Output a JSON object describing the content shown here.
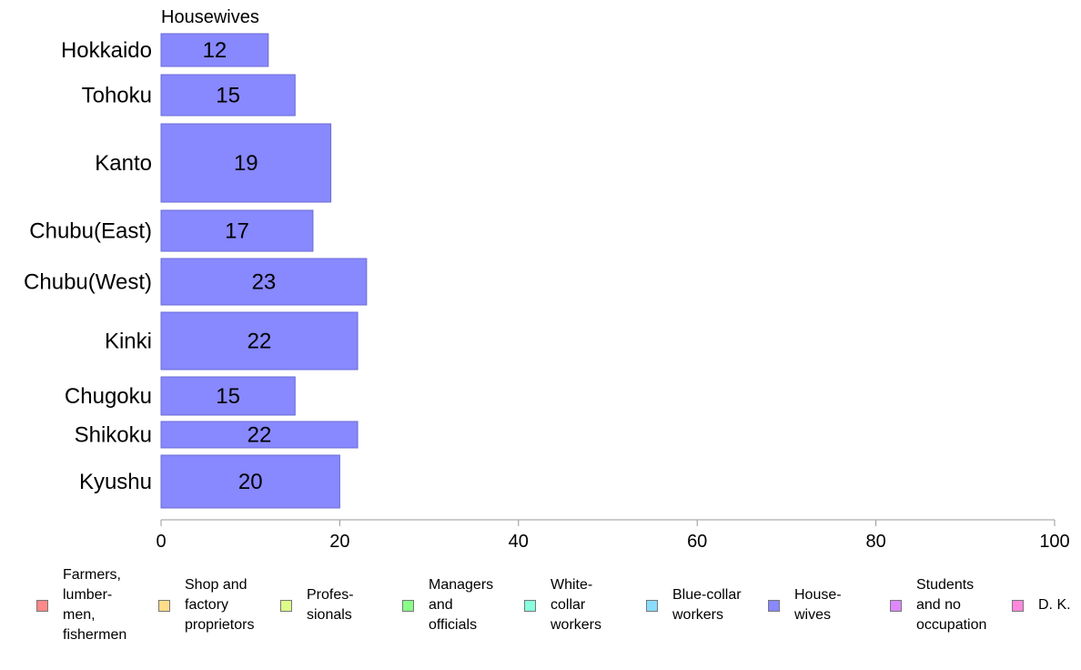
{
  "chart_data": {
    "type": "bar",
    "orientation": "horizontal",
    "title": "Housewives",
    "categories": [
      "Hokkaido",
      "Tohoku",
      "Kanto",
      "Chubu(East)",
      "Chubu(West)",
      "Kinki",
      "Chugoku",
      "Shikoku",
      "Kyushu"
    ],
    "values": [
      12,
      15,
      19,
      17,
      23,
      22,
      15,
      22,
      20
    ],
    "xlim": [
      0,
      100
    ],
    "xticks": [
      "0",
      "20",
      "40",
      "60",
      "80",
      "100"
    ],
    "bar_color": "#8888ff",
    "bar_edge_color": "#6b6bd6",
    "grid": false,
    "legend_position": "bottom",
    "legend": [
      {
        "label": "Farmers,\nlumber-\nmen,\nfishermen",
        "color": "#ff8888"
      },
      {
        "label": "Shop and\nfactory\nproprietors",
        "color": "#ffdd88"
      },
      {
        "label": "Profes-\nsionals",
        "color": "#ddff88"
      },
      {
        "label": "Managers\nand\nofficials",
        "color": "#88ff88"
      },
      {
        "label": "White-\ncollar\nworkers",
        "color": "#88ffdd"
      },
      {
        "label": "Blue-collar\nworkers",
        "color": "#88ddff"
      },
      {
        "label": "House-\nwives",
        "color": "#8888ff"
      },
      {
        "label": "Students\nand no\noccupation",
        "color": "#dd88ff"
      },
      {
        "label": "D. K.",
        "color": "#ff88dd"
      }
    ]
  }
}
